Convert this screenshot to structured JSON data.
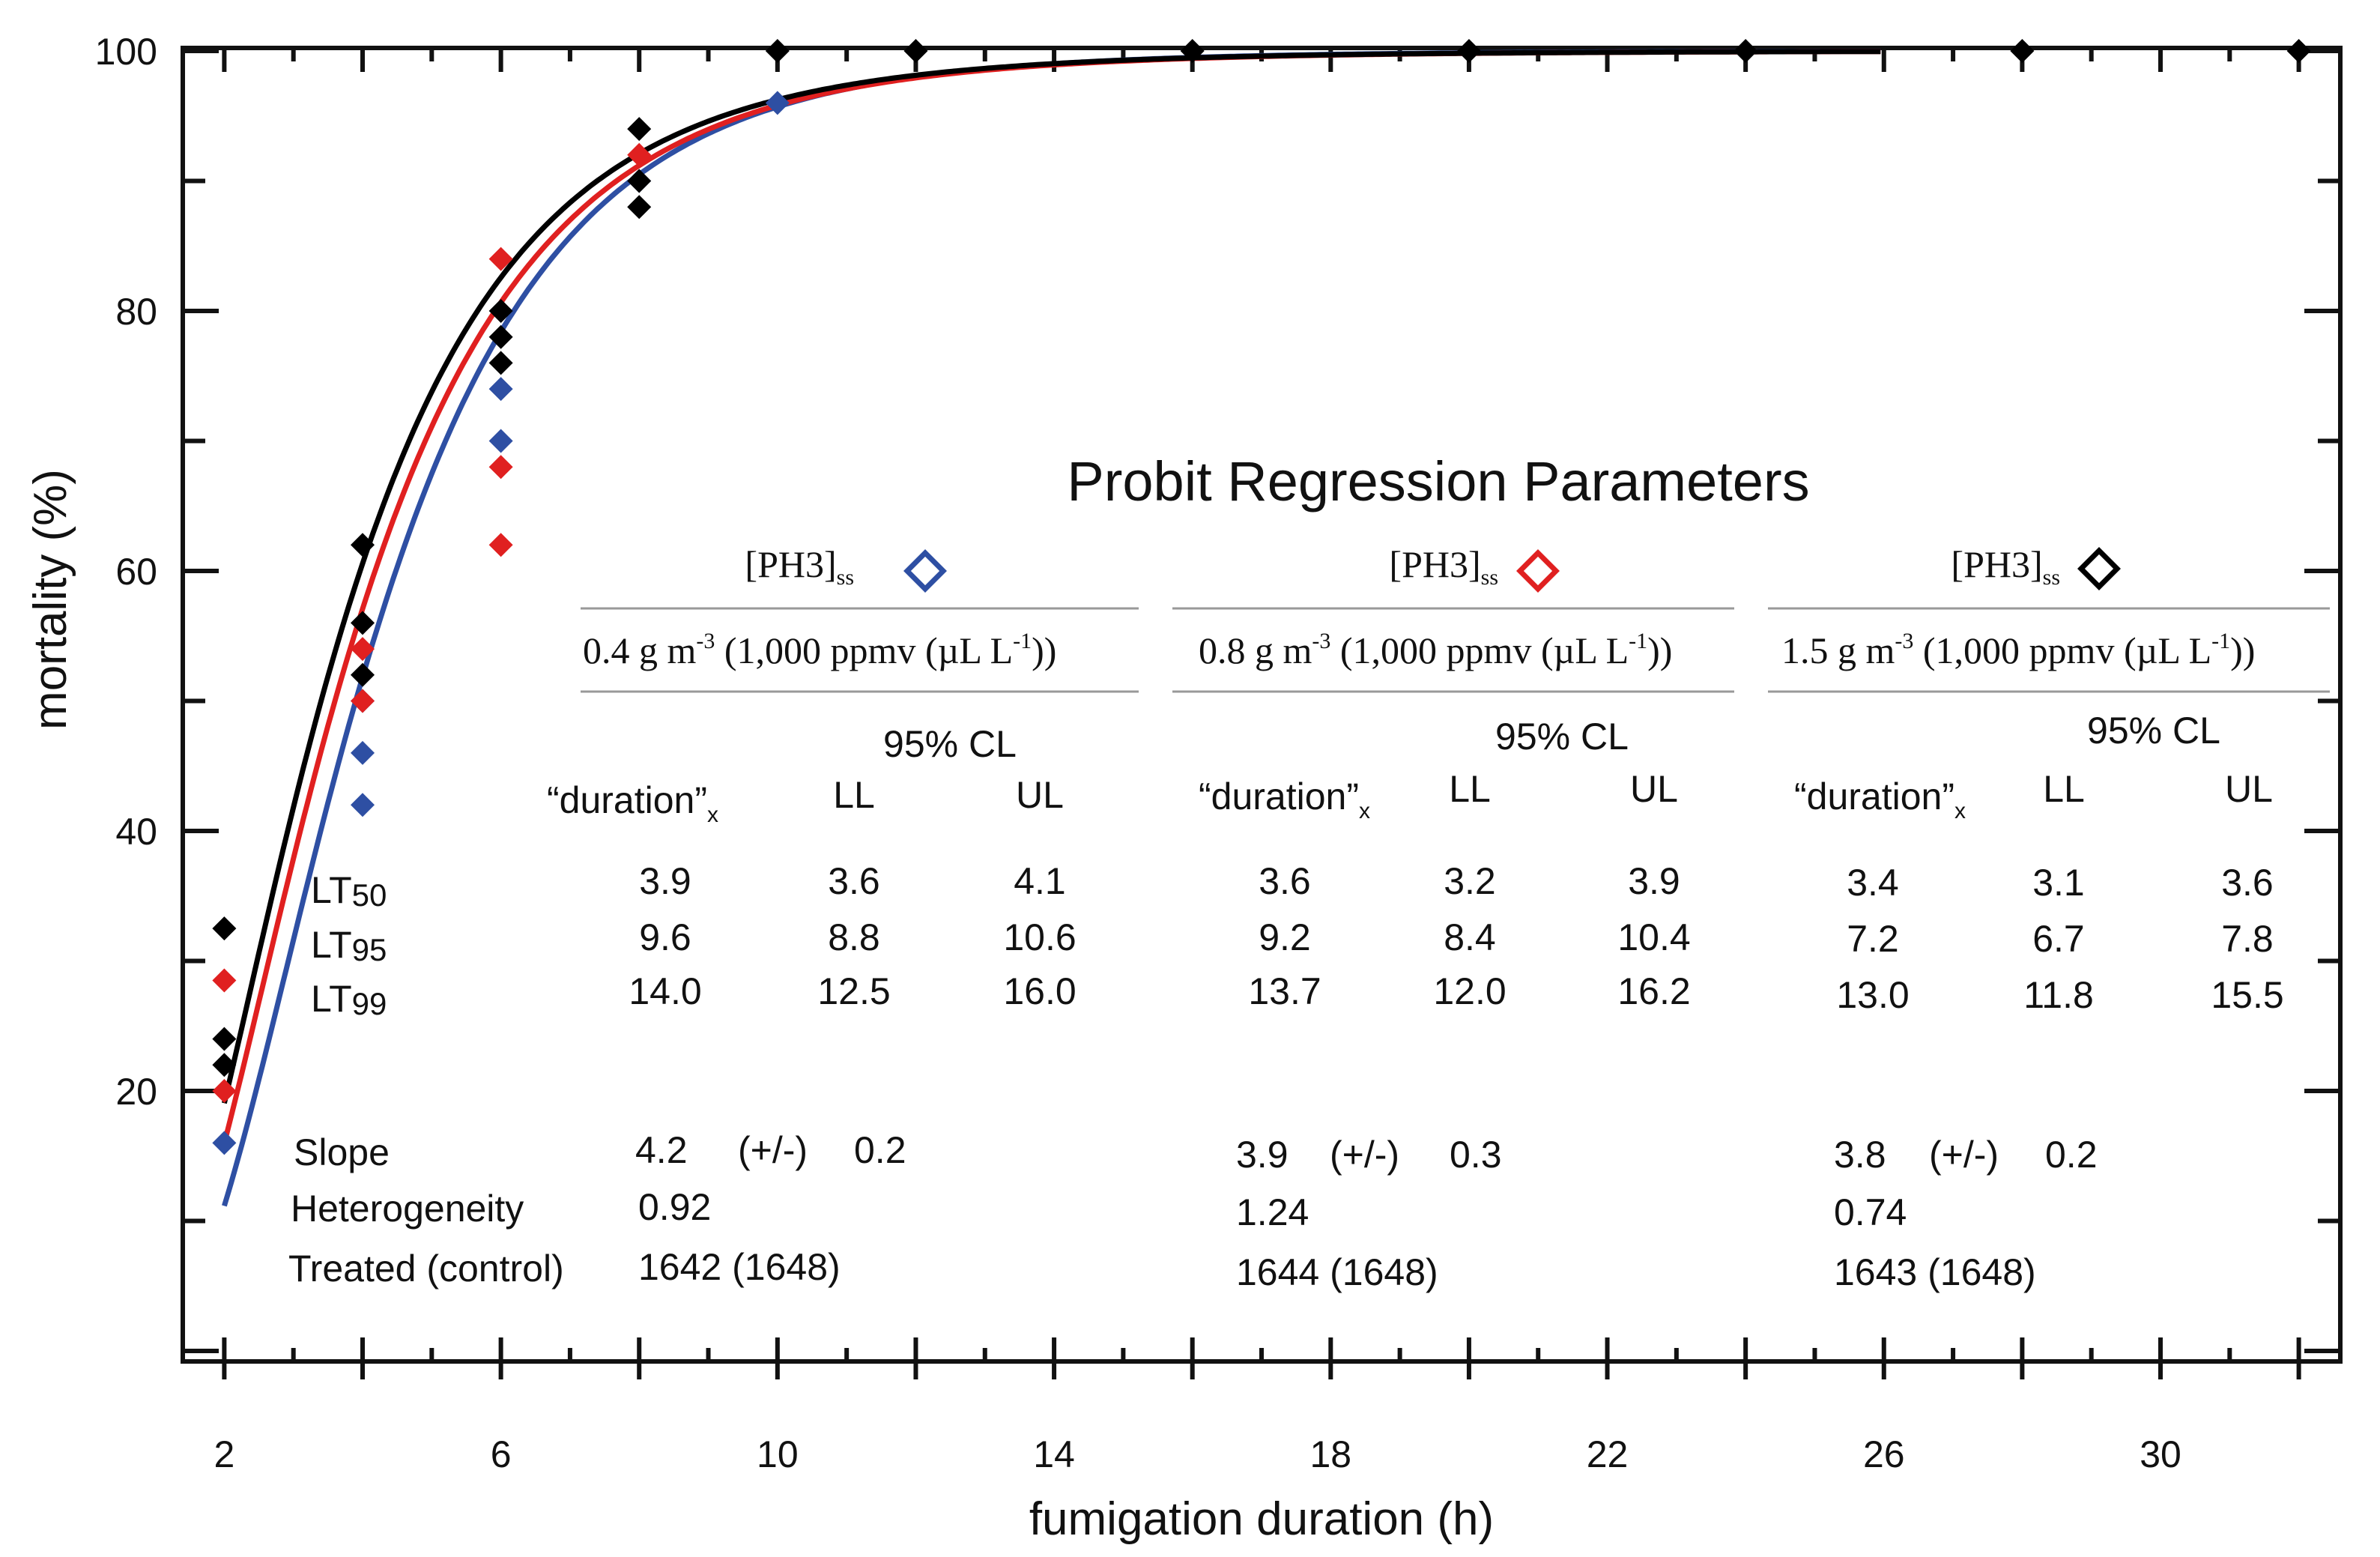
{
  "chart_data": {
    "type": "scatter",
    "xlabel": "fumigation duration (h)",
    "ylabel": "mortality (%)",
    "xlim": [
      1.4,
      32.6
    ],
    "ylim": [
      0,
      100
    ],
    "x_ticks": [
      "2",
      "6",
      "10",
      "14",
      "18",
      "22",
      "26",
      "30"
    ],
    "y_ticks": [
      "20",
      "40",
      "60",
      "80",
      "100"
    ],
    "series": [
      {
        "name": "0.4 g m-3",
        "color": "#2e4fa3",
        "points": [
          [
            2,
            16
          ],
          [
            4,
            42
          ],
          [
            4,
            46
          ],
          [
            4,
            50
          ],
          [
            6,
            70
          ],
          [
            6,
            74
          ],
          [
            8,
            90
          ],
          [
            10,
            96
          ]
        ],
        "curve": {
          "lt50": 3.9,
          "slope": 4.2
        }
      },
      {
        "name": "0.8 g m-3",
        "color": "#e02020",
        "points": [
          [
            2,
            20
          ],
          [
            2,
            28.5
          ],
          [
            4,
            50
          ],
          [
            4,
            54
          ],
          [
            6,
            62
          ],
          [
            6,
            68
          ],
          [
            6,
            84
          ],
          [
            8,
            92
          ]
        ],
        "curve": {
          "lt50": 3.6,
          "slope": 3.9
        }
      },
      {
        "name": "1.5 g m-3",
        "color": "#000000",
        "points": [
          [
            2,
            22
          ],
          [
            2,
            24
          ],
          [
            2,
            32.5
          ],
          [
            4,
            52
          ],
          [
            4,
            56
          ],
          [
            4,
            62
          ],
          [
            6,
            76
          ],
          [
            6,
            78
          ],
          [
            6,
            80
          ],
          [
            8,
            88
          ],
          [
            8,
            90
          ],
          [
            8,
            94
          ],
          [
            10,
            100
          ],
          [
            12,
            100
          ],
          [
            16,
            100
          ],
          [
            20,
            100
          ],
          [
            24,
            100
          ],
          [
            28,
            100
          ],
          [
            32,
            100
          ]
        ],
        "curve": {
          "lt50": 3.4,
          "slope": 3.8
        }
      }
    ]
  },
  "table": {
    "title": "Probit Regression Parameters",
    "columns": [
      {
        "conc_label": "[PH3]",
        "conc_sub": "ss",
        "conc_value": "0.4 g m",
        "conc_exp": "-3",
        "conc_paren": " (1,000 ppmv (µL L",
        "conc_paren_exp": "-1",
        "conc_end": "))",
        "marker_color": "#2e4fa3",
        "cl_label": "95% CL",
        "h_duration": "“duration”",
        "h_x": "x",
        "h_ll": "LL",
        "h_ul": "UL",
        "lt50": [
          "3.9",
          "3.6",
          "4.1"
        ],
        "lt95": [
          "9.6",
          "8.8",
          "10.6"
        ],
        "lt99": [
          "14.0",
          "12.5",
          "16.0"
        ],
        "slope": "4.2",
        "pm": "(+/-)",
        "slope_err": "0.2",
        "heterogeneity": "0.92",
        "treated": "1642 (1648)"
      },
      {
        "conc_label": "[PH3]",
        "conc_sub": "ss",
        "conc_value": "0.8 g m",
        "conc_exp": "-3",
        "conc_paren": " (1,000 ppmv (µL L",
        "conc_paren_exp": "-1",
        "conc_end": "))",
        "marker_color": "#e02020",
        "cl_label": "95% CL",
        "h_duration": "“duration”",
        "h_x": "x",
        "h_ll": "LL",
        "h_ul": "UL",
        "lt50": [
          "3.6",
          "3.2",
          "3.9"
        ],
        "lt95": [
          "9.2",
          "8.4",
          "10.4"
        ],
        "lt99": [
          "13.7",
          "12.0",
          "16.2"
        ],
        "slope": "3.9",
        "pm": "(+/-)",
        "slope_err": "0.3",
        "heterogeneity": "1.24",
        "treated": "1644 (1648)"
      },
      {
        "conc_label": "[PH3]",
        "conc_sub": "ss",
        "conc_value": "1.5 g m",
        "conc_exp": "-3",
        "conc_paren": " (1,000 ppmv (µL L",
        "conc_paren_exp": "-1",
        "conc_end": "))",
        "marker_color": "#000000",
        "cl_label": "95% CL",
        "h_duration": "“duration”",
        "h_x": "x",
        "h_ll": "LL",
        "h_ul": "UL",
        "lt50": [
          "3.4",
          "3.1",
          "3.6"
        ],
        "lt95": [
          "7.2",
          "6.7",
          "7.8"
        ],
        "lt99": [
          "13.0",
          "11.8",
          "15.5"
        ],
        "slope": "3.8",
        "pm": "(+/-)",
        "slope_err": "0.2",
        "heterogeneity": "0.74",
        "treated": "1643 (1648)"
      }
    ],
    "row_labels": {
      "lt": "LT",
      "lt50_sub": "50",
      "lt95_sub": "95",
      "lt99_sub": "99",
      "slope": "Slope",
      "heterogeneity": "Heterogeneity",
      "treated": "Treated (control)"
    }
  }
}
